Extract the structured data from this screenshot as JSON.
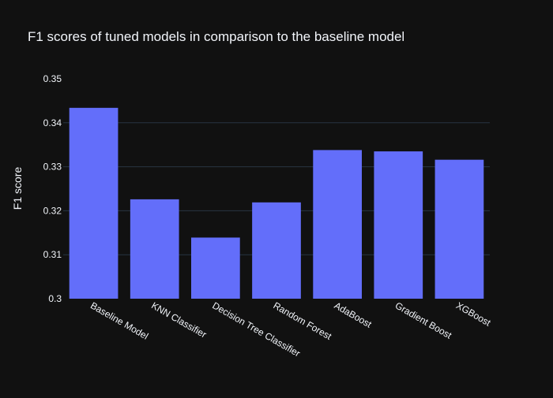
{
  "chart_data": {
    "type": "bar",
    "title": "F1 scores of tuned models in comparison to the baseline model",
    "xlabel": "",
    "ylabel": "F1 score",
    "ylim": [
      0.3,
      0.35
    ],
    "yticks": [
      0.3,
      0.31,
      0.32,
      0.33,
      0.34,
      0.35
    ],
    "ytick_labels": [
      "0.3",
      "0.31",
      "0.32",
      "0.33",
      "0.34",
      "0.35"
    ],
    "grid": true,
    "categories": [
      "Baseline Model",
      "KNN Classifier",
      "Decision Tree Classifier",
      "Random Forest",
      "AdaBoost",
      "Gradient Boost",
      "XGBoost"
    ],
    "values": [
      0.3434,
      0.3226,
      0.3139,
      0.3219,
      0.3338,
      0.3335,
      0.3316
    ],
    "colors": {
      "background": "#111111",
      "bar": "#636efa",
      "grid": "#283442",
      "text": "#f2f5fa"
    }
  }
}
